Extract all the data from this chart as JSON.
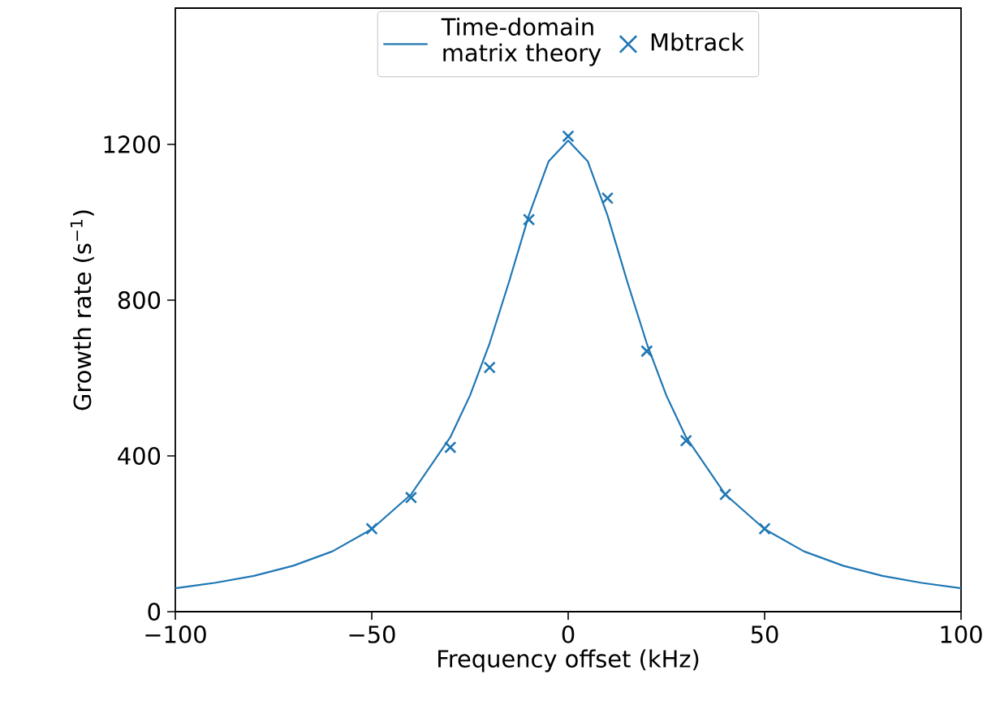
{
  "chart_data": {
    "type": "line",
    "xlabel": "Frequency offset (kHz)",
    "ylabel": "Growth rate (s$^{−1}$)",
    "xlim": [
      -100,
      100
    ],
    "xticks": [
      {
        "value": -100,
        "label": "−100"
      },
      {
        "value": -50,
        "label": "−50"
      },
      0,
      50,
      100
    ],
    "ylim": [
      0,
      1550
    ],
    "yticks": [
      0,
      400,
      800,
      1200
    ],
    "grid": false,
    "legend": "top",
    "series": [
      {
        "name": "Time-domain matrix theory",
        "color": "#1f77b4",
        "marker": "none",
        "x": [
          -100,
          -90,
          -80,
          -70,
          -60,
          -50,
          -40,
          -30,
          -25,
          -20,
          -15,
          -10,
          -5,
          0,
          5,
          10,
          15,
          20,
          25,
          30,
          40,
          50,
          60,
          70,
          80,
          90,
          100
        ],
        "values": [
          60,
          74,
          92,
          118,
          155,
          212,
          301,
          448,
          555,
          689,
          849,
          1018,
          1156,
          1210,
          1156,
          1018,
          849,
          689,
          555,
          448,
          301,
          212,
          155,
          118,
          92,
          74,
          60
        ]
      },
      {
        "name": "Mbtrack",
        "type": "scatter",
        "color": "#1f77b4",
        "marker": "cross",
        "x": [
          -50,
          -40,
          -30,
          -20,
          -10,
          0,
          10,
          20,
          30,
          40,
          50
        ],
        "values": [
          213,
          293,
          422,
          627,
          1007,
          1221,
          1062,
          669,
          439,
          301,
          213
        ]
      }
    ]
  }
}
